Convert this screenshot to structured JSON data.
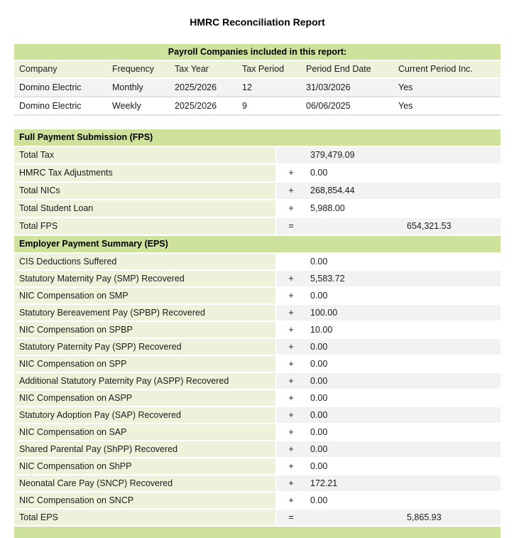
{
  "title": "HMRC Reconciliation Report",
  "colors": {
    "section_header_green": "#cfe29b",
    "light_green": "#edf3da",
    "band_gray": "#f2f2f2",
    "row_stripe_gray": "#f3f3f3"
  },
  "companies_table": {
    "header": "Payroll Companies included in this report:",
    "columns": [
      "Company",
      "Frequency",
      "Tax Year",
      "Tax Period",
      "Period End Date",
      "Current Period Inc."
    ],
    "rows": [
      [
        "Domino Electric",
        "Monthly",
        "2025/2026",
        "12",
        "31/03/2026",
        "Yes"
      ],
      [
        "Domino Electric",
        "Weekly",
        "2025/2026",
        "9",
        "06/06/2025",
        "Yes"
      ]
    ]
  },
  "fps_section": {
    "header": "Full Payment Submission (FPS)",
    "rows": [
      {
        "label": "Total Tax",
        "op": "",
        "value": "379,479.09",
        "total": ""
      },
      {
        "label": "HMRC Tax Adjustments",
        "op": "+",
        "value": "0.00",
        "total": ""
      },
      {
        "label": "Total NICs",
        "op": "+",
        "value": "268,854.44",
        "total": ""
      },
      {
        "label": "Total Student Loan",
        "op": "+",
        "value": "5,988.00",
        "total": ""
      },
      {
        "label": "Total FPS",
        "op": "=",
        "value": "",
        "total": "654,321.53"
      }
    ]
  },
  "eps_section": {
    "header": "Employer Payment Summary (EPS)",
    "rows": [
      {
        "label": "CIS Deductions Suffered",
        "op": "",
        "value": "0.00",
        "total": ""
      },
      {
        "label": "Statutory Maternity Pay (SMP) Recovered",
        "op": "+",
        "value": "5,583.72",
        "total": ""
      },
      {
        "label": "NIC Compensation on SMP",
        "op": "+",
        "value": "0.00",
        "total": ""
      },
      {
        "label": "Statutory Bereavement Pay (SPBP) Recovered",
        "op": "+",
        "value": "100.00",
        "total": ""
      },
      {
        "label": "NIC Compensation on SPBP",
        "op": "+",
        "value": "10.00",
        "total": ""
      },
      {
        "label": "Statutory Paternity Pay (SPP) Recovered",
        "op": "+",
        "value": "0.00",
        "total": ""
      },
      {
        "label": "NIC Compensation on SPP",
        "op": "+",
        "value": "0.00",
        "total": ""
      },
      {
        "label": "Additional Statutory Paternity Pay (ASPP) Recovered",
        "op": "+",
        "value": "0.00",
        "total": ""
      },
      {
        "label": "NIC Compensation on ASPP",
        "op": "+",
        "value": "0.00",
        "total": ""
      },
      {
        "label": "Statutory Adoption Pay (SAP) Recovered",
        "op": "+",
        "value": "0.00",
        "total": ""
      },
      {
        "label": "NIC Compensation on SAP",
        "op": "+",
        "value": "0.00",
        "total": ""
      },
      {
        "label": "Shared Parental Pay (ShPP) Recovered",
        "op": "+",
        "value": "0.00",
        "total": ""
      },
      {
        "label": "NIC Compensation on ShPP",
        "op": "+",
        "value": "0.00",
        "total": ""
      },
      {
        "label": "Neonatal Care Pay (SNCP) Recovered",
        "op": "+",
        "value": "172.21",
        "total": ""
      },
      {
        "label": "NIC Compensation on SNCP",
        "op": "+",
        "value": "0.00",
        "total": ""
      },
      {
        "label": "Total EPS",
        "op": "=",
        "value": "",
        "total": "5,865.93"
      }
    ]
  }
}
